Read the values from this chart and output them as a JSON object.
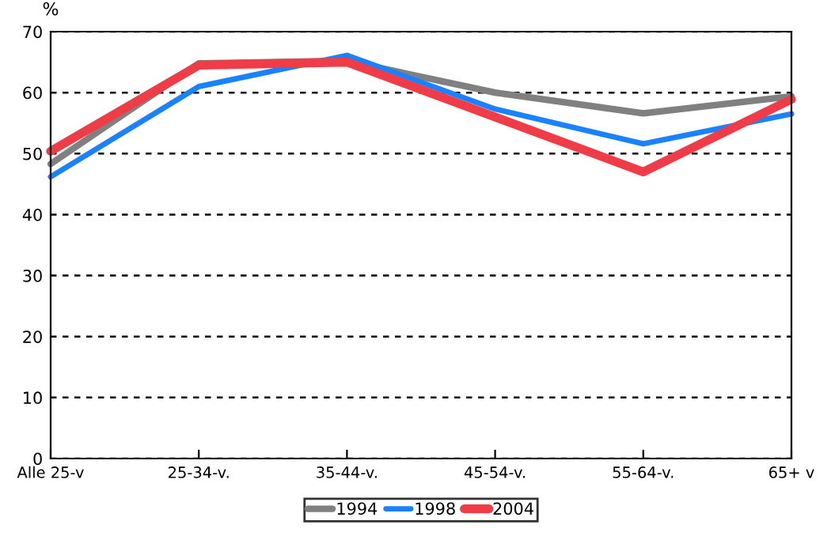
{
  "chart_data": {
    "type": "line",
    "ylabel": "%",
    "categories": [
      "Alle 25-v",
      "25-34-v.",
      "35-44-v.",
      "45-54-v.",
      "55-64-v.",
      "65+ v"
    ],
    "series": [
      {
        "name": "1994",
        "color": "#808080",
        "values": [
          48.3,
          64.8,
          65.2,
          60.0,
          56.6,
          59.4
        ]
      },
      {
        "name": "1998",
        "color": "#1a82ff",
        "values": [
          46.2,
          61.0,
          66.1,
          57.3,
          51.6,
          56.5
        ]
      },
      {
        "name": "2004",
        "color": "#f03c46",
        "values": [
          50.4,
          64.5,
          65.0,
          56.0,
          47.0,
          58.9
        ]
      }
    ],
    "ylim": [
      0,
      70
    ],
    "yticks": [
      0,
      10,
      20,
      30,
      40,
      50,
      60,
      70
    ],
    "grid": "y",
    "legend": "bottom",
    "marker": "none",
    "line_style": "solid"
  }
}
